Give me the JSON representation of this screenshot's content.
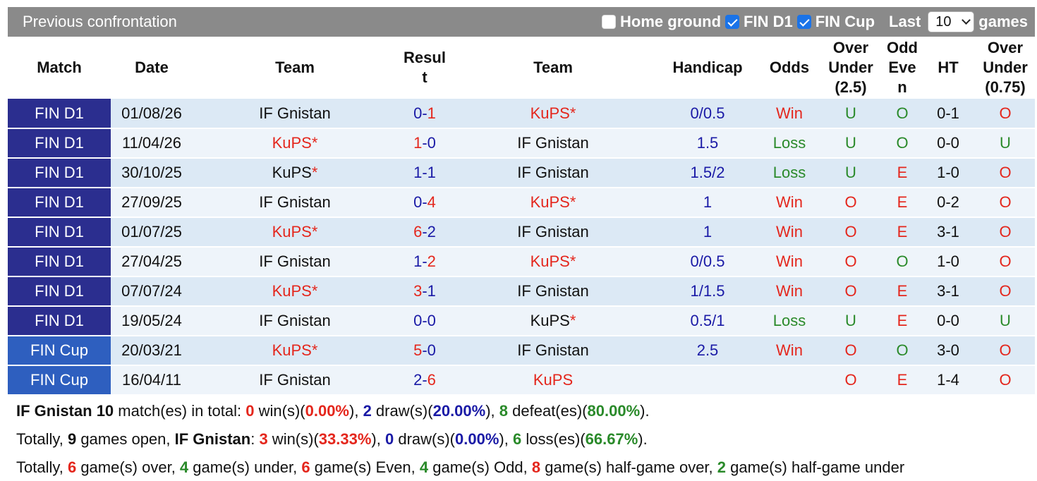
{
  "header": {
    "title": "Previous confrontation",
    "home_ground_label": "Home ground",
    "fin_d1_label": "FIN D1",
    "fin_cup_label": "FIN Cup",
    "last_label": "Last",
    "last_value": "10",
    "games_label": "games",
    "home_ground_checked": false,
    "fin_d1_checked": true,
    "fin_cup_checked": true
  },
  "columns": {
    "match": "Match",
    "date": "Date",
    "team_home": "Team",
    "result_1": "Resul",
    "result_2": "t",
    "team_away": "Team",
    "handicap": "Handicap",
    "odds": "Odds",
    "ou_1": "Over",
    "ou_2": "Under",
    "ou_3": "(2.5)",
    "oe_1": "Odd",
    "oe_2": "Eve",
    "oe_3": "n",
    "ht": "HT",
    "ou75_1": "Over",
    "ou75_2": "Under",
    "ou75_3": "(0.75)"
  },
  "colors": {
    "red": "#e4261c",
    "blue": "#1a1aa6",
    "green": "#2a8a2a",
    "league_d1": "#2b2e8f",
    "league_cup": "#2e5fbf"
  },
  "rows": [
    {
      "match": "FIN D1",
      "date": "01/08/26",
      "home": "IF Gnistan",
      "home_star": "",
      "home_color": "blk",
      "rh": "0",
      "rh_color": "blue",
      "ra": "1",
      "ra_color": "red",
      "away": "KuPS",
      "away_star": "*",
      "away_color": "red",
      "handicap": "0/0.5",
      "odds": "Win",
      "odds_color": "red",
      "ou": "U",
      "ou_color": "green",
      "oe": "O",
      "oe_color": "green",
      "ht": "0-1",
      "ou75": "O",
      "ou75_color": "red"
    },
    {
      "match": "FIN D1",
      "date": "11/04/26",
      "home": "KuPS",
      "home_star": "*",
      "home_color": "red",
      "rh": "1",
      "rh_color": "red",
      "ra": "0",
      "ra_color": "blue",
      "away": "IF Gnistan",
      "away_star": "",
      "away_color": "blk",
      "handicap": "1.5",
      "odds": "Loss",
      "odds_color": "green",
      "ou": "U",
      "ou_color": "green",
      "oe": "O",
      "oe_color": "green",
      "ht": "0-0",
      "ou75": "U",
      "ou75_color": "green"
    },
    {
      "match": "FIN D1",
      "date": "30/10/25",
      "home": "KuPS",
      "home_star": "*",
      "home_color": "blk",
      "rh": "1",
      "rh_color": "blue",
      "ra": "1",
      "ra_color": "blue",
      "away": "IF Gnistan",
      "away_star": "",
      "away_color": "blk",
      "handicap": "1.5/2",
      "odds": "Loss",
      "odds_color": "green",
      "ou": "U",
      "ou_color": "green",
      "oe": "E",
      "oe_color": "red",
      "ht": "1-0",
      "ou75": "O",
      "ou75_color": "red"
    },
    {
      "match": "FIN D1",
      "date": "27/09/25",
      "home": "IF Gnistan",
      "home_star": "",
      "home_color": "blk",
      "rh": "0",
      "rh_color": "blue",
      "ra": "4",
      "ra_color": "red",
      "away": "KuPS",
      "away_star": "*",
      "away_color": "red",
      "handicap": "1",
      "odds": "Win",
      "odds_color": "red",
      "ou": "O",
      "ou_color": "red",
      "oe": "E",
      "oe_color": "red",
      "ht": "0-2",
      "ou75": "O",
      "ou75_color": "red"
    },
    {
      "match": "FIN D1",
      "date": "01/07/25",
      "home": "KuPS",
      "home_star": "*",
      "home_color": "red",
      "rh": "6",
      "rh_color": "red",
      "ra": "2",
      "ra_color": "blue",
      "away": "IF Gnistan",
      "away_star": "",
      "away_color": "blk",
      "handicap": "1",
      "odds": "Win",
      "odds_color": "red",
      "ou": "O",
      "ou_color": "red",
      "oe": "E",
      "oe_color": "red",
      "ht": "3-1",
      "ou75": "O",
      "ou75_color": "red"
    },
    {
      "match": "FIN D1",
      "date": "27/04/25",
      "home": "IF Gnistan",
      "home_star": "",
      "home_color": "blk",
      "rh": "1",
      "rh_color": "blue",
      "ra": "2",
      "ra_color": "red",
      "away": "KuPS",
      "away_star": "*",
      "away_color": "red",
      "handicap": "0/0.5",
      "odds": "Win",
      "odds_color": "red",
      "ou": "O",
      "ou_color": "red",
      "oe": "O",
      "oe_color": "green",
      "ht": "1-0",
      "ou75": "O",
      "ou75_color": "red"
    },
    {
      "match": "FIN D1",
      "date": "07/07/24",
      "home": "KuPS",
      "home_star": "*",
      "home_color": "red",
      "rh": "3",
      "rh_color": "red",
      "ra": "1",
      "ra_color": "blue",
      "away": "IF Gnistan",
      "away_star": "",
      "away_color": "blk",
      "handicap": "1/1.5",
      "odds": "Win",
      "odds_color": "red",
      "ou": "O",
      "ou_color": "red",
      "oe": "E",
      "oe_color": "red",
      "ht": "3-1",
      "ou75": "O",
      "ou75_color": "red"
    },
    {
      "match": "FIN D1",
      "date": "19/05/24",
      "home": "IF Gnistan",
      "home_star": "",
      "home_color": "blk",
      "rh": "0",
      "rh_color": "blue",
      "ra": "0",
      "ra_color": "blue",
      "away": "KuPS",
      "away_star": "*",
      "away_color": "blk",
      "handicap": "0.5/1",
      "odds": "Loss",
      "odds_color": "green",
      "ou": "U",
      "ou_color": "green",
      "oe": "E",
      "oe_color": "red",
      "ht": "0-0",
      "ou75": "U",
      "ou75_color": "green"
    },
    {
      "match": "FIN Cup",
      "date": "20/03/21",
      "home": "KuPS",
      "home_star": "*",
      "home_color": "red",
      "rh": "5",
      "rh_color": "red",
      "ra": "0",
      "ra_color": "blue",
      "away": "IF Gnistan",
      "away_star": "",
      "away_color": "blk",
      "handicap": "2.5",
      "odds": "Win",
      "odds_color": "red",
      "ou": "O",
      "ou_color": "red",
      "oe": "O",
      "oe_color": "green",
      "ht": "3-0",
      "ou75": "O",
      "ou75_color": "red"
    },
    {
      "match": "FIN Cup",
      "date": "16/04/11",
      "home": "IF Gnistan",
      "home_star": "",
      "home_color": "blk",
      "rh": "2",
      "rh_color": "blue",
      "ra": "6",
      "ra_color": "red",
      "away": "KuPS",
      "away_star": "",
      "away_color": "red",
      "handicap": "",
      "odds": "",
      "odds_color": "red",
      "ou": "O",
      "ou_color": "red",
      "oe": "E",
      "oe_color": "red",
      "ht": "1-4",
      "ou75": "O",
      "ou75_color": "red"
    }
  ],
  "summary": {
    "line1": {
      "team": "IF Gnistan",
      "total": "10",
      "total_suffix": " match(es) in total: ",
      "wins": "0",
      "wins_label": " win(s)(",
      "wins_pct": "0.00%",
      "sep1": "), ",
      "draws": "2",
      "draws_label": " draw(s)(",
      "draws_pct": "20.00%",
      "sep2": "), ",
      "defeats": "8",
      "defeats_label": " defeat(es)(",
      "defeats_pct": "80.00%",
      "end": ")."
    },
    "line2": {
      "prefix": "Totally, ",
      "open": "9",
      "open_label": " games open, ",
      "team": "IF Gnistan",
      "colon": ": ",
      "wins": "3",
      "wins_label": " win(s)(",
      "wins_pct": "33.33%",
      "sep1": "), ",
      "draws": "0",
      "draws_label": " draw(s)(",
      "draws_pct": "0.00%",
      "sep2": "), ",
      "losses": "6",
      "losses_label": " loss(es)(",
      "losses_pct": "66.67%",
      "end": ")."
    },
    "line3": {
      "prefix": "Totally, ",
      "over": "6",
      "over_label": " game(s) over, ",
      "under": "4",
      "under_label": " game(s) under, ",
      "even": "6",
      "even_label": " game(s) Even, ",
      "odd": "4",
      "odd_label": " game(s) Odd, ",
      "hg_over": "8",
      "hg_over_label": " game(s) half-game over, ",
      "hg_under": "2",
      "hg_under_label": " game(s) half-game under"
    }
  }
}
